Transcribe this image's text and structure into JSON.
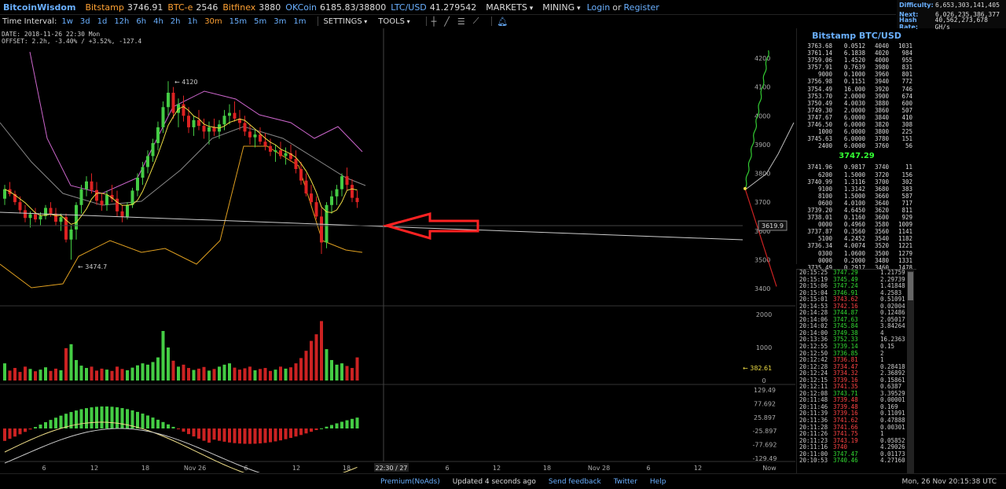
{
  "topbar": {
    "brand": "BitcoinWisdom",
    "markets": [
      {
        "name": "Bitstamp",
        "price": "3746.91",
        "color": "#ffa133"
      },
      {
        "name": "BTC-e",
        "price": "2546",
        "color": "#ffa133"
      },
      {
        "name": "Bitfinex",
        "price": "3880",
        "color": "#ffa133"
      },
      {
        "name": "OKCoin",
        "price": "6185.83/38800",
        "color": "#6ab0ff"
      },
      {
        "name": "LTC/USD",
        "price": "41.279542",
        "color": "#6ab0ff"
      }
    ],
    "menu_markets": "MARKETS",
    "menu_mining": "MINING",
    "login": "Login",
    "or": "or",
    "register": "Register"
  },
  "network": {
    "difficulty_label": "Difficulty:",
    "difficulty": "6,653,303,141,405",
    "next_label": "Next:",
    "next": "6,026,235,386,377",
    "hashrate_label": "Hash Rate:",
    "hashrate": "40,562,273,678 GH/s"
  },
  "toolbar": {
    "interval_label": "Time Interval:",
    "intervals": [
      "1w",
      "3d",
      "1d",
      "12h",
      "6h",
      "4h",
      "2h",
      "1h",
      "30m",
      "15m",
      "5m",
      "3m",
      "1m"
    ],
    "active_interval": "30m",
    "settings": "SETTINGS",
    "tools": "TOOLS"
  },
  "info": {
    "date_line": "DATE: 2018-11-26 22:30 Mon",
    "offset_line": "OFFSET: 2.2h, -3.40% / +3.52%, -127.4"
  },
  "chart_labels": {
    "high": "4120",
    "low": "3474.7",
    "cursor_price": "3619.9",
    "vol_marker": "382.61",
    "cursor_time": "22:30 / 27"
  },
  "chart_data": {
    "type": "candlestick",
    "price_axis": [
      4200,
      4100,
      4000,
      3900,
      3800,
      3700,
      3600,
      3500,
      3400
    ],
    "volume_axis": [
      2000,
      1000,
      0
    ],
    "macd_axis": [
      "129.49",
      "77.692",
      "25.897",
      "-25.897",
      "-77.692",
      "-129.49"
    ],
    "x_ticks": [
      "6",
      "12",
      "18",
      "Nov 26",
      "6",
      "12",
      "18",
      "6",
      "12",
      "18",
      "Nov 28",
      "6",
      "12",
      "Now"
    ],
    "candles": [
      [
        3712,
        3760,
        3690,
        3745
      ],
      [
        3745,
        3770,
        3720,
        3728
      ],
      [
        3728,
        3740,
        3690,
        3700
      ],
      [
        3700,
        3720,
        3660,
        3672
      ],
      [
        3672,
        3690,
        3630,
        3645
      ],
      [
        3645,
        3668,
        3612,
        3658
      ],
      [
        3658,
        3680,
        3630,
        3640
      ],
      [
        3640,
        3665,
        3620,
        3652
      ],
      [
        3652,
        3690,
        3640,
        3680
      ],
      [
        3680,
        3700,
        3650,
        3660
      ],
      [
        3660,
        3680,
        3620,
        3632
      ],
      [
        3632,
        3660,
        3600,
        3648
      ],
      [
        3648,
        3660,
        3560,
        3570
      ],
      [
        3570,
        3620,
        3500,
        3605
      ],
      [
        3605,
        3700,
        3570,
        3690
      ],
      [
        3690,
        3760,
        3660,
        3745
      ],
      [
        3745,
        3790,
        3720,
        3772
      ],
      [
        3772,
        3800,
        3730,
        3742
      ],
      [
        3742,
        3770,
        3690,
        3705
      ],
      [
        3705,
        3730,
        3670,
        3690
      ],
      [
        3690,
        3740,
        3670,
        3725
      ],
      [
        3725,
        3760,
        3700,
        3712
      ],
      [
        3712,
        3740,
        3650,
        3668
      ],
      [
        3668,
        3690,
        3630,
        3650
      ],
      [
        3650,
        3700,
        3640,
        3690
      ],
      [
        3690,
        3750,
        3680,
        3740
      ],
      [
        3740,
        3800,
        3720,
        3785
      ],
      [
        3785,
        3840,
        3760,
        3822
      ],
      [
        3822,
        3880,
        3800,
        3860
      ],
      [
        3860,
        3920,
        3840,
        3905
      ],
      [
        3905,
        3980,
        3880,
        3960
      ],
      [
        3960,
        4050,
        3940,
        4030
      ],
      [
        4030,
        4120,
        4000,
        4080
      ],
      [
        4080,
        4100,
        3990,
        4010
      ],
      [
        4010,
        4060,
        3960,
        4040
      ],
      [
        4040,
        4070,
        3980,
        4000
      ],
      [
        4000,
        4030,
        3940,
        3960
      ],
      [
        3960,
        4000,
        3930,
        3985
      ],
      [
        3985,
        4020,
        3950,
        3965
      ],
      [
        3965,
        3990,
        3920,
        3945
      ],
      [
        3945,
        3980,
        3900,
        3960
      ],
      [
        3960,
        3990,
        3930,
        3945
      ],
      [
        3945,
        3985,
        3920,
        3970
      ],
      [
        3970,
        4020,
        3950,
        4000
      ],
      [
        4000,
        4040,
        3970,
        4010
      ],
      [
        4010,
        4050,
        3980,
        3990
      ],
      [
        3990,
        4020,
        3950,
        3975
      ],
      [
        3975,
        4000,
        3930,
        3945
      ],
      [
        3945,
        3970,
        3900,
        3925
      ],
      [
        3925,
        3950,
        3890,
        3935
      ],
      [
        3935,
        3960,
        3900,
        3910
      ],
      [
        3910,
        3940,
        3880,
        3895
      ],
      [
        3895,
        3920,
        3860,
        3875
      ],
      [
        3875,
        3900,
        3840,
        3880
      ],
      [
        3880,
        3910,
        3850,
        3860
      ],
      [
        3860,
        3890,
        3830,
        3870
      ],
      [
        3870,
        3900,
        3840,
        3850
      ],
      [
        3850,
        3880,
        3800,
        3815
      ],
      [
        3815,
        3840,
        3760,
        3775
      ],
      [
        3775,
        3800,
        3720,
        3730
      ],
      [
        3730,
        3760,
        3690,
        3700
      ],
      [
        3700,
        3720,
        3640,
        3650
      ],
      [
        3650,
        3680,
        3520,
        3560
      ],
      [
        3560,
        3700,
        3540,
        3690
      ],
      [
        3690,
        3740,
        3660,
        3720
      ],
      [
        3720,
        3760,
        3690,
        3745
      ],
      [
        3745,
        3800,
        3720,
        3790
      ],
      [
        3790,
        3820,
        3740,
        3760
      ],
      [
        3760,
        3780,
        3700,
        3715
      ],
      [
        3715,
        3740,
        3680,
        3700
      ]
    ],
    "volume": [
      520,
      300,
      380,
      260,
      420,
      350,
      280,
      330,
      400,
      290,
      360,
      310,
      980,
      1100,
      620,
      450,
      380,
      420,
      300,
      360,
      330,
      290,
      420,
      350,
      310,
      390,
      460,
      520,
      480,
      560,
      700,
      1500,
      1000,
      600,
      420,
      480,
      380,
      320,
      360,
      410,
      300,
      350,
      420,
      480,
      520,
      390,
      330,
      370,
      420,
      310,
      350,
      380,
      290,
      330,
      420,
      360,
      400,
      520,
      680,
      900,
      1200,
      1400,
      1800,
      950,
      620,
      480,
      520,
      440,
      380,
      700
    ]
  },
  "orderbook": {
    "title": "Bitstamp BTC/USD",
    "asks": [
      [
        "3763.68",
        "0.0512",
        "4040",
        "1031"
      ],
      [
        "3761.14",
        "6.1838",
        "4020",
        "984"
      ],
      [
        "3759.06",
        "1.4520",
        "4000",
        "955"
      ],
      [
        "3757.91",
        "0.7639",
        "3980",
        "831"
      ],
      [
        "9000",
        "0.1000",
        "3960",
        "801"
      ],
      [
        "3756.98",
        "0.1151",
        "3940",
        "772"
      ],
      [
        "3754.49",
        "16.000",
        "3920",
        "746"
      ],
      [
        "3753.70",
        "2.0000",
        "3900",
        "674"
      ],
      [
        "3750.49",
        "4.0030",
        "3880",
        "600"
      ],
      [
        "3749.30",
        "2.0000",
        "3860",
        "507"
      ],
      [
        "3747.67",
        "6.0000",
        "3840",
        "410"
      ],
      [
        "3746.50",
        "6.0000",
        "3820",
        "308"
      ],
      [
        "1000",
        "6.0000",
        "3800",
        "225"
      ],
      [
        "3745.63",
        "6.0000",
        "3780",
        "151"
      ],
      [
        "2400",
        "6.0000",
        "3760",
        "56"
      ]
    ],
    "mid": "3747.29",
    "bids": [
      [
        "3741.96",
        "0.9817",
        "3740",
        "11"
      ],
      [
        "6200",
        "1.5000",
        "3720",
        "156"
      ],
      [
        "3740.99",
        "1.3116",
        "3700",
        "302"
      ],
      [
        "9100",
        "1.3142",
        "3680",
        "383"
      ],
      [
        "8100",
        "1.5000",
        "3660",
        "587"
      ],
      [
        "0600",
        "4.0100",
        "3640",
        "717"
      ],
      [
        "3739.20",
        "4.6450",
        "3620",
        "811"
      ],
      [
        "3738.01",
        "0.1160",
        "3600",
        "929"
      ],
      [
        "0000",
        "0.4960",
        "3580",
        "1009"
      ],
      [
        "3737.87",
        "0.3560",
        "3560",
        "1141"
      ],
      [
        "5100",
        "4.2452",
        "3540",
        "1182"
      ],
      [
        "3736.34",
        "4.0074",
        "3520",
        "1221"
      ],
      [
        "0300",
        "1.0600",
        "3500",
        "1279"
      ],
      [
        "0000",
        "0.2000",
        "3480",
        "1331"
      ],
      [
        "3735.49",
        "0.2917",
        "3460",
        "1478"
      ]
    ]
  },
  "trades": [
    [
      "20:15:25",
      "3747.29",
      "up",
      "1.21759"
    ],
    [
      "20:15:19",
      "3745.49",
      "up",
      "2.29739"
    ],
    [
      "20:15:06",
      "3747.24",
      "up",
      "1.41848"
    ],
    [
      "20:15:04",
      "3746.91",
      "up",
      "4.2583"
    ],
    [
      "20:15:01",
      "3743.62",
      "dn",
      "0.51091"
    ],
    [
      "20:14:53",
      "3742.16",
      "dn",
      "0.02004"
    ],
    [
      "20:14:28",
      "3744.87",
      "up",
      "0.12486"
    ],
    [
      "20:14:06",
      "3747.63",
      "up",
      "2.05017"
    ],
    [
      "20:14:02",
      "3745.84",
      "up",
      "3.84264"
    ],
    [
      "20:14:00",
      "3749.38",
      "up",
      "4"
    ],
    [
      "20:13:36",
      "3752.33",
      "up",
      "16.2363"
    ],
    [
      "20:12:55",
      "3739.14",
      "up",
      "0.15"
    ],
    [
      "20:12:50",
      "3736.85",
      "up",
      "2"
    ],
    [
      "20:12:42",
      "3736.81",
      "dn",
      "1"
    ],
    [
      "20:12:28",
      "3734.47",
      "dn",
      "0.28418"
    ],
    [
      "20:12:24",
      "3734.32",
      "dn",
      "2.36892"
    ],
    [
      "20:12:15",
      "3739.16",
      "dn",
      "0.15861"
    ],
    [
      "20:12:11",
      "3741.35",
      "dn",
      "0.6387"
    ],
    [
      "20:12:08",
      "3743.71",
      "up",
      "3.39529"
    ],
    [
      "20:11:48",
      "3739.48",
      "dn",
      "0.00001"
    ],
    [
      "20:11:46",
      "3739.48",
      "dn",
      "0.169"
    ],
    [
      "20:11:39",
      "3739.16",
      "dn",
      "0.11091"
    ],
    [
      "20:11:36",
      "3741.62",
      "dn",
      "0.47888"
    ],
    [
      "20:11:28",
      "3741.66",
      "dn",
      "0.00301"
    ],
    [
      "20:11:26",
      "3741.75",
      "dn",
      "1"
    ],
    [
      "20:11:23",
      "3743.19",
      "dn",
      "0.05852"
    ],
    [
      "20:11:16",
      "3740",
      "dn",
      "4.29026"
    ],
    [
      "20:11:00",
      "3747.47",
      "up",
      "0.01173"
    ],
    [
      "20:10:53",
      "3740.46",
      "up",
      "4.27160"
    ]
  ],
  "footer": {
    "premium": "Premium(NoAds)",
    "updated": "Updated 4 seconds ago",
    "feedback": "Send feedback",
    "twitter": "Twitter",
    "help": "Help",
    "clock": "Mon, 26 Nov 20:15:38 UTC"
  }
}
